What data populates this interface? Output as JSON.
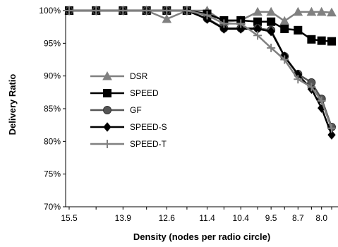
{
  "chart_data": {
    "type": "line",
    "title": "",
    "xlabel": "Density (nodes per radio circle)",
    "ylabel": "Delivery Ratio",
    "x_tick_labels": [
      "15.5",
      "13.9",
      "12.6",
      "11.4",
      "10.4",
      "9.5",
      "8.7",
      "8.0"
    ],
    "y_tick_labels": [
      "70%",
      "75%",
      "80%",
      "85%",
      "90%",
      "95%",
      "100%"
    ],
    "ylim": [
      0.7,
      1.0
    ],
    "y_ticks": [
      0.7,
      0.75,
      0.8,
      0.85,
      0.9,
      0.95,
      1.0
    ],
    "x_points": [
      15.5,
      14.7,
      13.9,
      13.2,
      12.6,
      12.0,
      11.4,
      10.9,
      10.4,
      9.9,
      9.5,
      9.1,
      8.7,
      8.3,
      8.0,
      7.7
    ],
    "x_tick_values": [
      15.5,
      13.9,
      12.6,
      11.4,
      10.4,
      9.5,
      8.7,
      8.0
    ],
    "grid": false,
    "legend_position": "middle-left",
    "series": [
      {
        "name": "DSR",
        "marker": "triangle",
        "color": "#808080",
        "values": [
          1.0,
          1.0,
          1.0,
          1.0,
          0.987,
          1.0,
          1.0,
          0.983,
          0.985,
          0.998,
          0.998,
          0.984,
          0.998,
          0.998,
          0.998,
          0.997
        ]
      },
      {
        "name": "SPEED",
        "marker": "square",
        "color": "#000000",
        "values": [
          1.0,
          1.0,
          1.0,
          1.0,
          1.0,
          1.0,
          0.995,
          0.985,
          0.985,
          0.983,
          0.983,
          0.972,
          0.97,
          0.956,
          0.954,
          0.953
        ]
      },
      {
        "name": "GF",
        "marker": "circle",
        "color": "#555555",
        "values": [
          1.0,
          1.0,
          1.0,
          1.0,
          1.0,
          1.0,
          0.988,
          0.973,
          0.973,
          0.973,
          0.97,
          0.93,
          0.903,
          0.89,
          0.865,
          0.822
        ]
      },
      {
        "name": "SPEED-S",
        "marker": "diamond",
        "color": "#000000",
        "values": [
          1.0,
          1.0,
          1.0,
          1.0,
          1.0,
          1.0,
          0.987,
          0.972,
          0.972,
          0.972,
          0.968,
          0.93,
          0.902,
          0.88,
          0.851,
          0.81
        ]
      },
      {
        "name": "SPEED-T",
        "marker": "plus",
        "color": "#808080",
        "values": [
          1.0,
          1.0,
          1.0,
          1.0,
          1.0,
          1.0,
          0.993,
          0.98,
          0.98,
          0.962,
          0.943,
          0.925,
          0.895,
          0.883,
          0.862,
          0.82
        ]
      }
    ]
  }
}
